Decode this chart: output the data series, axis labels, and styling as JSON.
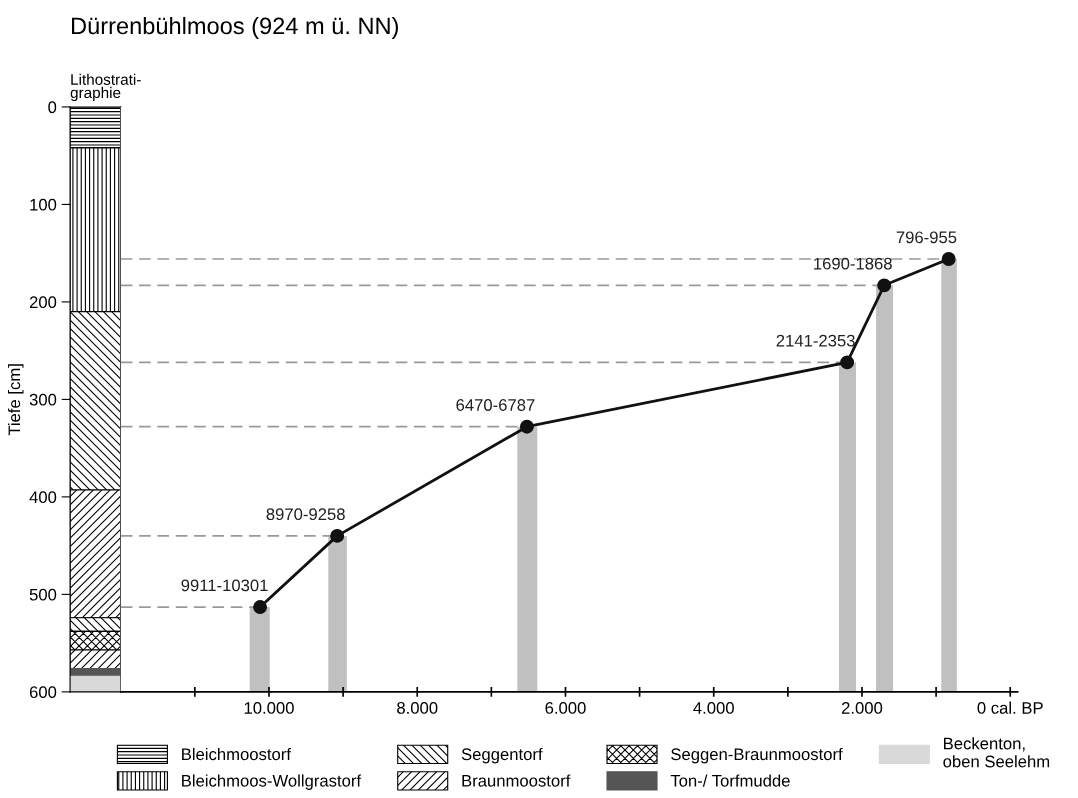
{
  "chart_data": [
    {
      "type": "bar",
      "title": "Dürrenbühlmoos (924 m ü. NN)",
      "subtitle": "Lithostrati-\ngraphie",
      "ylabel": "Tiefe [cm]",
      "categories": [
        null
      ],
      "stacked": true,
      "legend": "bottom",
      "ylim": [
        600,
        0
      ],
      "yticks": [
        0,
        100,
        200,
        300,
        400,
        500,
        600
      ],
      "series": [
        {
          "name": "Bleichmoostorf",
          "color": "#000000",
          "values": [
            42
          ]
        },
        {
          "name": "Bleichmoos-Wollgrastorf",
          "color": "#000000",
          "values": [
            168
          ]
        },
        {
          "name": "Seggentorf",
          "color": "#000000",
          "values": [
            183
          ]
        },
        {
          "name": "Braunmoostorf",
          "color": "#000000",
          "values": [
            131
          ]
        },
        {
          "color": "#000000",
          "values": [
            14
          ]
        },
        {
          "name": "Seggen-Braunmoostorf",
          "color": "#000000",
          "values": [
            19
          ]
        },
        {
          "color": "#000000",
          "values": [
            19
          ]
        },
        {
          "name": "Ton-/ Torfmudde",
          "color": "#555555",
          "values": [
            8
          ]
        },
        {
          "name": "Beckenton,\noben Seelehm",
          "color": "#d9d9d9",
          "values": [
            16
          ]
        }
      ]
    },
    {
      "type": "line",
      "x": [
        10120,
        9080,
        6520,
        2200,
        1700,
        830
      ],
      "marker": "circle",
      "line_style": "solid",
      "tick_labels": "x",
      "xlim": [
        12000,
        -100
      ],
      "ylim": [
        600,
        0
      ],
      "xticks": [
        {
          "value": 11000,
          "label": null
        },
        {
          "value": 10000,
          "label": "10.000"
        },
        {
          "value": 9000,
          "label": null
        },
        {
          "value": 8000,
          "label": "8.000"
        },
        {
          "value": 7000,
          "label": null
        },
        {
          "value": 6000,
          "label": "6.000"
        },
        {
          "value": 5000,
          "label": null
        },
        {
          "value": 4000,
          "label": "4.000"
        },
        {
          "value": 3000,
          "label": null
        },
        {
          "value": 2000,
          "label": "2.000"
        },
        {
          "value": 1000,
          "label": null
        },
        {
          "value": 0,
          "label": "0 cal. BP"
        }
      ],
      "series": [
        {
          "color": "#111111",
          "values": [
            513,
            440,
            328,
            262,
            183,
            156
          ]
        }
      ],
      "bands": [
        {
          "axis": "x",
          "from": 10260,
          "to": 9990,
          "color": "#c0c0c0"
        },
        {
          "axis": "x",
          "from": 9200,
          "to": 8950,
          "color": "#c0c0c0"
        },
        {
          "axis": "x",
          "from": 6650,
          "to": 6380,
          "color": "#c0c0c0"
        },
        {
          "axis": "x",
          "from": 2310,
          "to": 2080,
          "color": "#c0c0c0"
        },
        {
          "axis": "x",
          "from": 1810,
          "to": 1580,
          "color": "#c0c0c0"
        },
        {
          "axis": "x",
          "from": 930,
          "to": 720,
          "color": "#c0c0c0"
        }
      ],
      "ref_lines": [
        {
          "axis": "y",
          "value": 513,
          "color": "#999999",
          "line_style": "dashed"
        },
        {
          "axis": "y",
          "value": 440,
          "color": "#999999",
          "line_style": "dashed"
        },
        {
          "axis": "y",
          "value": 328,
          "color": "#999999",
          "line_style": "dashed"
        },
        {
          "axis": "y",
          "value": 262,
          "color": "#999999",
          "line_style": "dashed"
        },
        {
          "axis": "y",
          "value": 183,
          "color": "#999999",
          "line_style": "dashed"
        },
        {
          "axis": "y",
          "value": 156,
          "color": "#999999",
          "line_style": "dashed"
        }
      ],
      "annotations": [
        {
          "text": "9911-10301",
          "x": 10120,
          "y": 513
        },
        {
          "text": "8970-9258",
          "x": 9080,
          "y": 440
        },
        {
          "text": "6470-6787",
          "x": 6520,
          "y": 328
        },
        {
          "text": "2141-2353",
          "x": 2200,
          "y": 262
        },
        {
          "text": "1690-1868",
          "x": 1700,
          "y": 183
        },
        {
          "text": "796-955",
          "x": 830,
          "y": 156
        }
      ]
    }
  ]
}
